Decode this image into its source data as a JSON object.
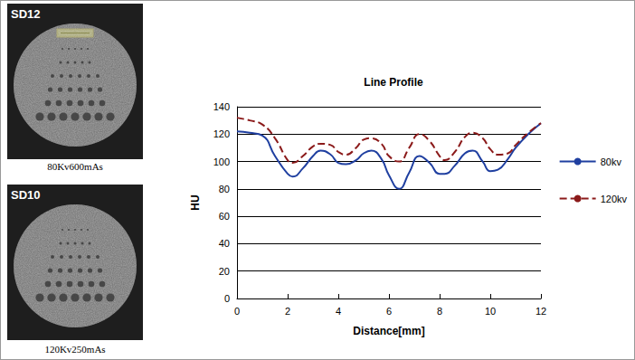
{
  "images": [
    {
      "badge": "SD12",
      "caption": "80Kv600mAs"
    },
    {
      "badge": "SD10",
      "caption": "120Kv250mAs"
    }
  ],
  "chart_data": {
    "type": "line",
    "title": "Line Profile",
    "x_label": "Distance[mm]",
    "y_label": "HU",
    "x": [
      0,
      0.5,
      1,
      1.5,
      2,
      2.2,
      2.6,
      3,
      3.3,
      3.7,
      4,
      4.3,
      4.7,
      5,
      5.3,
      5.7,
      6,
      6.4,
      6.8,
      7.2,
      7.6,
      8,
      8.2,
      8.6,
      9,
      9.3,
      9.7,
      10,
      10.3,
      10.7,
      11,
      11.5,
      12
    ],
    "series": [
      {
        "name": "80kv",
        "color": "#1f3fa0",
        "line_style": "solid",
        "values": [
          122,
          121,
          119,
          104,
          91,
          89,
          95,
          104,
          108,
          105,
          99,
          98,
          101,
          106,
          108,
          102,
          90,
          80,
          92,
          104,
          99,
          91,
          91,
          97,
          106,
          108,
          100,
          93,
          94,
          102,
          110,
          120,
          128
        ]
      },
      {
        "name": "120kv",
        "color": "#8b1a1a",
        "line_style": "dashed",
        "values": [
          132,
          130,
          127,
          117,
          101,
          99,
          104,
          111,
          113,
          112,
          107,
          105,
          110,
          116,
          117,
          113,
          104,
          100,
          110,
          120,
          115,
          104,
          101,
          107,
          118,
          121,
          117,
          109,
          105,
          106,
          112,
          121,
          128
        ]
      }
    ],
    "xlim": [
      0,
      12
    ],
    "xticks": [
      0,
      2,
      4,
      6,
      8,
      10,
      12
    ],
    "ylim": [
      0,
      140
    ],
    "yticks": [
      0,
      20,
      40,
      60,
      80,
      100,
      120,
      140
    ],
    "grid": true,
    "legend": "right"
  }
}
